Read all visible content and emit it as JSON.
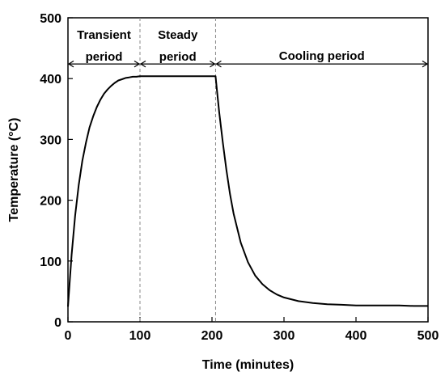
{
  "chart_data": {
    "type": "line",
    "xlabel": "Time (minutes)",
    "ylabel": "Temperature (°C)",
    "xlim": [
      0,
      500
    ],
    "ylim": [
      0,
      500
    ],
    "xticks": [
      0,
      100,
      200,
      300,
      400,
      500
    ],
    "yticks": [
      0,
      100,
      200,
      300,
      400,
      500
    ],
    "grid": false,
    "legend": "none",
    "series": [
      {
        "x": [
          0,
          5,
          10,
          15,
          20,
          25,
          30,
          35,
          40,
          45,
          50,
          55,
          60,
          65,
          70,
          75,
          80,
          85,
          90,
          95,
          100,
          120,
          140,
          160,
          180,
          200,
          205,
          207,
          210,
          215,
          220,
          225,
          230,
          240,
          250,
          260,
          270,
          280,
          290,
          300,
          320,
          340,
          360,
          380,
          400,
          420,
          440,
          460,
          480,
          500
        ],
        "y": [
          25,
          110,
          175,
          225,
          265,
          295,
          320,
          338,
          353,
          365,
          375,
          382,
          388,
          393,
          397,
          399,
          401,
          402,
          403,
          403,
          404,
          404,
          404,
          404,
          404,
          404,
          404,
          380,
          345,
          295,
          250,
          210,
          178,
          130,
          98,
          76,
          62,
          52,
          45,
          40,
          34,
          31,
          29,
          28,
          27,
          27,
          27,
          27,
          26,
          26
        ],
        "color": "#000000"
      }
    ],
    "period_dividers": [
      100,
      205
    ],
    "annotations": [
      {
        "lines": [
          "Transient",
          "period"
        ],
        "from": 0,
        "to": 100
      },
      {
        "lines": [
          "Steady",
          "period"
        ],
        "from": 100,
        "to": 205
      },
      {
        "lines": [
          "Cooling period"
        ],
        "from": 205,
        "to": 500
      }
    ]
  }
}
